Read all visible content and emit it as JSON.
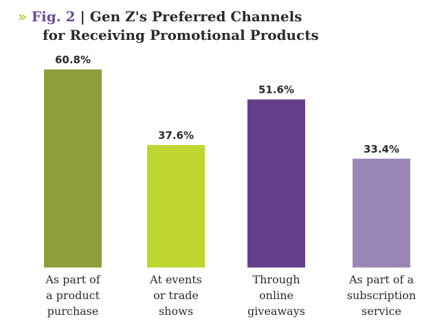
{
  "header": {
    "chevrons": "»",
    "figure": "Fig. 2",
    "separator": "|",
    "title_line1": "Gen Z's Preferred Channels",
    "title_line2": "for Receiving Promotional Products"
  },
  "chart_data": {
    "type": "bar",
    "title": "Gen Z's Preferred Channels for Receiving Promotional Products",
    "categories": [
      [
        "As part of",
        "a product",
        "purchase"
      ],
      [
        "At events",
        "or trade",
        "shows"
      ],
      [
        "Through",
        "online",
        "giveaways"
      ],
      [
        "As part of a",
        "subscription",
        "service"
      ]
    ],
    "values": [
      60.8,
      37.6,
      51.6,
      33.4
    ],
    "value_labels": [
      "60.8%",
      "37.6%",
      "51.6%",
      "33.4%"
    ],
    "colors": [
      "#8ea03c",
      "#bfd630",
      "#653f8c",
      "#9b86b8"
    ],
    "ylim": [
      0,
      60.8
    ],
    "grid": false,
    "legend": "none"
  }
}
